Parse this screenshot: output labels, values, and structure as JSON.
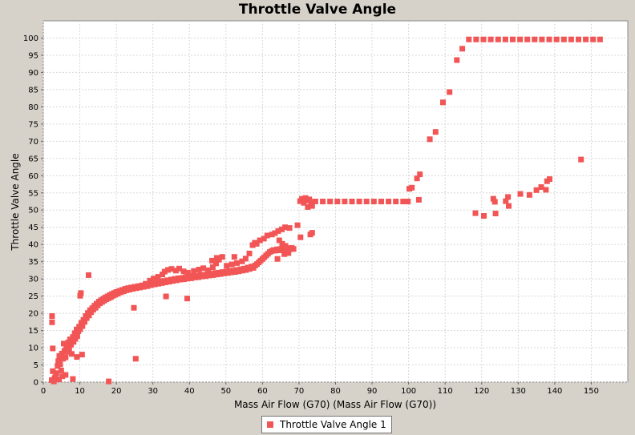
{
  "chart_data": {
    "type": "scatter",
    "title": "Throttle Valve Angle",
    "xlabel": "Mass Air Flow (G70) (Mass Air Flow (G70))",
    "ylabel": "Throttle Valve Angle",
    "xlim": [
      0,
      160
    ],
    "ylim": [
      0,
      105
    ],
    "xticks": [
      0,
      10,
      20,
      30,
      40,
      50,
      60,
      70,
      80,
      90,
      100,
      110,
      120,
      130,
      140,
      150
    ],
    "yticks": [
      0,
      5,
      10,
      15,
      20,
      25,
      30,
      35,
      40,
      45,
      50,
      55,
      60,
      65,
      70,
      75,
      80,
      85,
      90,
      95,
      100
    ],
    "grid": true,
    "legend_position": "bottom",
    "point_color": "#f25555",
    "series": [
      {
        "name": "Throttle Valve Angle 1",
        "points": [
          [
            2.4,
            19.2
          ],
          [
            2.4,
            17.4
          ],
          [
            2.6,
            9.8
          ],
          [
            2.6,
            3.2
          ],
          [
            2.3,
            0.6
          ],
          [
            2.9,
            0.2
          ],
          [
            3.3,
            1.5
          ],
          [
            3.6,
            2.6
          ],
          [
            3.9,
            4.7
          ],
          [
            4.1,
            6.1
          ],
          [
            4.4,
            7.6
          ],
          [
            4.6,
            5.2
          ],
          [
            4.9,
            3.4
          ],
          [
            5.1,
            8.3
          ],
          [
            5.4,
            6.8
          ],
          [
            5.6,
            11.2
          ],
          [
            5.8,
            9.1
          ],
          [
            6.1,
            7.2
          ],
          [
            6.3,
            10.4
          ],
          [
            6.6,
            8.8
          ],
          [
            6.8,
            11.5
          ],
          [
            7.1,
            9.6
          ],
          [
            7.3,
            12.4
          ],
          [
            7.6,
            10.9
          ],
          [
            7.8,
            8.2
          ],
          [
            8.1,
            13.1
          ],
          [
            8.3,
            11.7
          ],
          [
            8.6,
            14.2
          ],
          [
            8.8,
            12.6
          ],
          [
            9.1,
            15.3
          ],
          [
            9.3,
            13.4
          ],
          [
            9.6,
            14.8
          ],
          [
            9.8,
            16.1
          ],
          [
            10.1,
            15.4
          ],
          [
            10.4,
            17.2
          ],
          [
            10.7,
            16.3
          ],
          [
            11.0,
            18.1
          ],
          [
            11.3,
            17.5
          ],
          [
            11.6,
            19.2
          ],
          [
            11.9,
            18.6
          ],
          [
            12.2,
            20.1
          ],
          [
            12.5,
            19.4
          ],
          [
            12.8,
            20.9
          ],
          [
            13.1,
            20.3
          ],
          [
            13.4,
            21.5
          ],
          [
            13.7,
            21.1
          ],
          [
            14.0,
            22.2
          ],
          [
            14.3,
            21.6
          ],
          [
            14.6,
            22.8
          ],
          [
            14.9,
            22.3
          ],
          [
            15.2,
            23.4
          ],
          [
            15.5,
            22.9
          ],
          [
            15.8,
            23.8
          ],
          [
            16.1,
            23.3
          ],
          [
            16.4,
            24.2
          ],
          [
            16.7,
            23.7
          ],
          [
            17.0,
            24.6
          ],
          [
            17.3,
            24.1
          ],
          [
            17.6,
            24.9
          ],
          [
            17.9,
            24.4
          ],
          [
            18.2,
            25.3
          ],
          [
            18.5,
            24.7
          ],
          [
            18.8,
            25.6
          ],
          [
            19.1,
            25.1
          ],
          [
            19.4,
            25.9
          ],
          [
            19.7,
            25.4
          ],
          [
            20.0,
            26.2
          ],
          [
            20.4,
            25.7
          ],
          [
            20.8,
            26.5
          ],
          [
            21.2,
            26.1
          ],
          [
            21.6,
            26.8
          ],
          [
            22.0,
            26.4
          ],
          [
            22.4,
            27.1
          ],
          [
            22.8,
            26.7
          ],
          [
            23.2,
            27.3
          ],
          [
            23.6,
            26.9
          ],
          [
            24.0,
            27.5
          ],
          [
            24.5,
            27.1
          ],
          [
            25.0,
            27.7
          ],
          [
            25.5,
            27.3
          ],
          [
            26.0,
            27.9
          ],
          [
            26.5,
            27.5
          ],
          [
            27.0,
            28.1
          ],
          [
            27.5,
            27.7
          ],
          [
            28.0,
            28.3
          ],
          [
            28.5,
            27.9
          ],
          [
            29.0,
            28.6
          ],
          [
            29.5,
            28.2
          ],
          [
            30.0,
            28.8
          ],
          [
            30.5,
            28.4
          ],
          [
            31.0,
            29.0
          ],
          [
            31.5,
            28.6
          ],
          [
            32.0,
            29.2
          ],
          [
            32.5,
            28.8
          ],
          [
            33.0,
            29.4
          ],
          [
            33.5,
            29.0
          ],
          [
            34.0,
            29.6
          ],
          [
            34.5,
            29.2
          ],
          [
            35.0,
            29.8
          ],
          [
            35.5,
            29.4
          ],
          [
            36.0,
            30.0
          ],
          [
            36.5,
            29.6
          ],
          [
            37.0,
            30.2
          ],
          [
            37.5,
            29.8
          ],
          [
            38.0,
            30.3
          ],
          [
            38.5,
            29.9
          ],
          [
            39.0,
            30.5
          ],
          [
            39.5,
            30.1
          ],
          [
            40.0,
            30.6
          ],
          [
            40.5,
            30.2
          ],
          [
            41.0,
            30.8
          ],
          [
            41.5,
            30.4
          ],
          [
            42.0,
            30.9
          ],
          [
            42.5,
            30.5
          ],
          [
            43.0,
            31.1
          ],
          [
            43.5,
            30.7
          ],
          [
            44.0,
            31.2
          ],
          [
            44.5,
            30.8
          ],
          [
            45.0,
            31.4
          ],
          [
            45.5,
            31.0
          ],
          [
            46.0,
            31.5
          ],
          [
            46.5,
            31.1
          ],
          [
            47.0,
            31.7
          ],
          [
            47.5,
            31.3
          ],
          [
            48.0,
            31.8
          ],
          [
            48.5,
            31.4
          ],
          [
            49.0,
            32.0
          ],
          [
            49.5,
            31.6
          ],
          [
            50.0,
            32.1
          ],
          [
            50.5,
            31.7
          ],
          [
            51.0,
            32.3
          ],
          [
            51.5,
            31.9
          ],
          [
            52.0,
            32.4
          ],
          [
            52.5,
            32.0
          ],
          [
            53.0,
            32.6
          ],
          [
            53.5,
            32.2
          ],
          [
            54.0,
            32.8
          ],
          [
            54.5,
            32.4
          ],
          [
            55.0,
            33.0
          ],
          [
            55.5,
            32.6
          ],
          [
            56.0,
            33.3
          ],
          [
            56.5,
            32.9
          ],
          [
            57.0,
            33.6
          ],
          [
            57.5,
            33.2
          ],
          [
            58.0,
            33.9
          ],
          [
            58.5,
            34.3
          ],
          [
            59.0,
            34.8
          ],
          [
            59.5,
            35.3
          ],
          [
            60.0,
            35.8
          ],
          [
            60.5,
            36.3
          ],
          [
            61.0,
            36.8
          ],
          [
            61.5,
            37.3
          ],
          [
            62.0,
            37.8
          ],
          [
            62.5,
            38.1
          ],
          [
            63.0,
            38.4
          ],
          [
            63.5,
            38.2
          ],
          [
            64.0,
            38.6
          ],
          [
            64.5,
            38.3
          ],
          [
            65.0,
            38.7
          ],
          [
            65.5,
            38.4
          ],
          [
            66.0,
            38.8
          ],
          [
            66.5,
            38.5
          ],
          [
            67.0,
            38.9
          ],
          [
            67.5,
            38.6
          ],
          [
            68.0,
            39.0
          ],
          [
            68.5,
            38.7
          ],
          [
            28.0,
            28.6
          ],
          [
            29.2,
            29.5
          ],
          [
            30.2,
            30.1
          ],
          [
            31.4,
            30.6
          ],
          [
            32.6,
            31.3
          ],
          [
            33.2,
            32.1
          ],
          [
            34.1,
            32.6
          ],
          [
            35.1,
            32.9
          ],
          [
            36.3,
            32.4
          ],
          [
            37.2,
            33.0
          ],
          [
            38.4,
            32.2
          ],
          [
            39.6,
            31.8
          ],
          [
            41.2,
            32.3
          ],
          [
            42.6,
            32.7
          ],
          [
            43.8,
            33.1
          ],
          [
            45.2,
            32.5
          ],
          [
            46.4,
            33.4
          ],
          [
            47.3,
            34.5
          ],
          [
            48.1,
            35.6
          ],
          [
            49.0,
            36.4
          ],
          [
            50.2,
            33.8
          ],
          [
            51.6,
            34.2
          ],
          [
            53.0,
            34.6
          ],
          [
            54.4,
            35.1
          ],
          [
            55.4,
            35.9
          ],
          [
            56.4,
            37.4
          ],
          [
            57.3,
            39.8
          ],
          [
            57.9,
            40.5
          ],
          [
            58.4,
            40.2
          ],
          [
            59.3,
            41.2
          ],
          [
            60.4,
            41.7
          ],
          [
            61.3,
            42.6
          ],
          [
            62.6,
            42.9
          ],
          [
            63.4,
            43.3
          ],
          [
            64.3,
            43.9
          ],
          [
            65.3,
            44.4
          ],
          [
            66.2,
            45.0
          ],
          [
            67.4,
            44.8
          ],
          [
            64.6,
            41.2
          ],
          [
            65.4,
            40.2
          ],
          [
            66.3,
            39.6
          ],
          [
            67.1,
            37.5
          ],
          [
            64.1,
            35.8
          ],
          [
            66.0,
            37.2
          ],
          [
            69.6,
            45.6
          ],
          [
            70.4,
            42.1
          ],
          [
            73.1,
            42.9
          ],
          [
            73.6,
            43.4
          ],
          [
            46.2,
            35.3
          ],
          [
            47.5,
            36.1
          ],
          [
            52.3,
            36.4
          ],
          [
            24.8,
            21.6
          ],
          [
            25.3,
            6.8
          ],
          [
            17.9,
            0.2
          ],
          [
            10.3,
            25.9
          ],
          [
            10.1,
            25.1
          ],
          [
            12.4,
            31.1
          ],
          [
            10.6,
            8.0
          ],
          [
            9.2,
            7.3
          ],
          [
            8.1,
            0.9
          ],
          [
            6.1,
            2.1
          ],
          [
            5.2,
            1.7
          ],
          [
            3.1,
            1.1
          ],
          [
            4.3,
            0.8
          ],
          [
            39.4,
            24.3
          ],
          [
            33.6,
            24.9
          ],
          [
            70.3,
            52.6
          ],
          [
            70.8,
            53.3
          ],
          [
            71.3,
            52.1
          ],
          [
            71.8,
            53.5
          ],
          [
            72.3,
            52.8
          ],
          [
            72.8,
            53.1
          ],
          [
            73.3,
            52.4
          ],
          [
            73.6,
            51.2
          ],
          [
            72.4,
            50.9
          ],
          [
            74.5,
            52.5
          ],
          [
            76.5,
            52.5
          ],
          [
            78.5,
            52.5
          ],
          [
            80.5,
            52.5
          ],
          [
            82.5,
            52.5
          ],
          [
            84.5,
            52.5
          ],
          [
            86.5,
            52.5
          ],
          [
            88.5,
            52.5
          ],
          [
            90.5,
            52.5
          ],
          [
            92.5,
            52.5
          ],
          [
            94.5,
            52.5
          ],
          [
            96.5,
            52.5
          ],
          [
            98.5,
            52.5
          ],
          [
            99.8,
            52.5
          ],
          [
            100.2,
            56.2
          ],
          [
            100.9,
            56.5
          ],
          [
            102.3,
            59.2
          ],
          [
            103.1,
            60.4
          ],
          [
            102.8,
            53.0
          ],
          [
            105.8,
            70.6
          ],
          [
            107.4,
            72.7
          ],
          [
            109.4,
            81.3
          ],
          [
            111.2,
            84.3
          ],
          [
            113.2,
            93.6
          ],
          [
            114.7,
            96.9
          ],
          [
            116.5,
            99.6
          ],
          [
            118.5,
            99.6
          ],
          [
            120.5,
            99.6
          ],
          [
            122.5,
            99.6
          ],
          [
            124.5,
            99.6
          ],
          [
            126.5,
            99.6
          ],
          [
            128.5,
            99.6
          ],
          [
            130.5,
            99.6
          ],
          [
            132.5,
            99.6
          ],
          [
            134.5,
            99.6
          ],
          [
            136.5,
            99.6
          ],
          [
            138.5,
            99.6
          ],
          [
            140.5,
            99.6
          ],
          [
            142.5,
            99.6
          ],
          [
            144.5,
            99.6
          ],
          [
            146.5,
            99.6
          ],
          [
            148.5,
            99.6
          ],
          [
            150.5,
            99.6
          ],
          [
            152.4,
            99.6
          ],
          [
            118.3,
            49.1
          ],
          [
            120.6,
            48.3
          ],
          [
            123.2,
            53.3
          ],
          [
            123.6,
            52.4
          ],
          [
            123.8,
            49.0
          ],
          [
            126.6,
            52.6
          ],
          [
            127.2,
            53.8
          ],
          [
            127.4,
            51.2
          ],
          [
            130.6,
            54.7
          ],
          [
            133.1,
            54.4
          ],
          [
            135.0,
            55.8
          ],
          [
            136.3,
            56.7
          ],
          [
            137.6,
            55.9
          ],
          [
            137.9,
            58.4
          ],
          [
            138.6,
            59.0
          ],
          [
            147.2,
            64.7
          ]
        ]
      }
    ]
  }
}
